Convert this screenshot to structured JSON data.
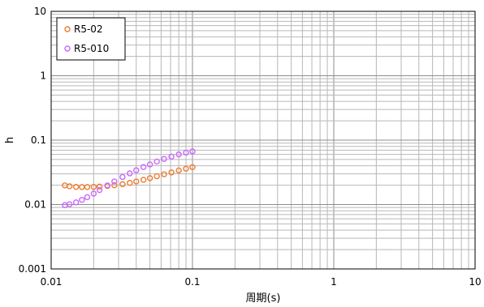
{
  "chart_data": {
    "type": "scatter",
    "title": "",
    "xlabel": "周期(s)",
    "ylabel": "h",
    "xscale": "log",
    "yscale": "log",
    "xlim": [
      0.01,
      10
    ],
    "ylim": [
      0.001,
      10
    ],
    "grid": true,
    "legend_position": "top-left",
    "x_tick_labels": [
      "0.01",
      "0.1",
      "1",
      "10"
    ],
    "y_tick_labels": [
      "0.001",
      "0.01",
      "0.1",
      "1",
      "10"
    ],
    "series": [
      {
        "name": "R5-02",
        "color": "#ED7D31",
        "marker": "circle-open",
        "x": [
          0.0125,
          0.0135,
          0.015,
          0.0165,
          0.018,
          0.02,
          0.022,
          0.025,
          0.028,
          0.032,
          0.036,
          0.04,
          0.045,
          0.05,
          0.056,
          0.063,
          0.071,
          0.08,
          0.09,
          0.1
        ],
        "y": [
          0.0198,
          0.0192,
          0.0188,
          0.0187,
          0.0187,
          0.0188,
          0.019,
          0.0194,
          0.0199,
          0.0207,
          0.0217,
          0.0228,
          0.0242,
          0.0257,
          0.0275,
          0.0295,
          0.0315,
          0.0338,
          0.036,
          0.038
        ]
      },
      {
        "name": "R5-010",
        "color": "#CC66FF",
        "marker": "circle-open",
        "x": [
          0.0125,
          0.0135,
          0.015,
          0.0165,
          0.018,
          0.02,
          0.022,
          0.025,
          0.028,
          0.032,
          0.036,
          0.04,
          0.045,
          0.05,
          0.056,
          0.063,
          0.071,
          0.08,
          0.09,
          0.1
        ],
        "y": [
          0.0098,
          0.0101,
          0.0108,
          0.0118,
          0.013,
          0.0148,
          0.0168,
          0.0198,
          0.0228,
          0.0268,
          0.0305,
          0.034,
          0.0382,
          0.042,
          0.0465,
          0.051,
          0.0555,
          0.06,
          0.064,
          0.067
        ]
      }
    ]
  }
}
